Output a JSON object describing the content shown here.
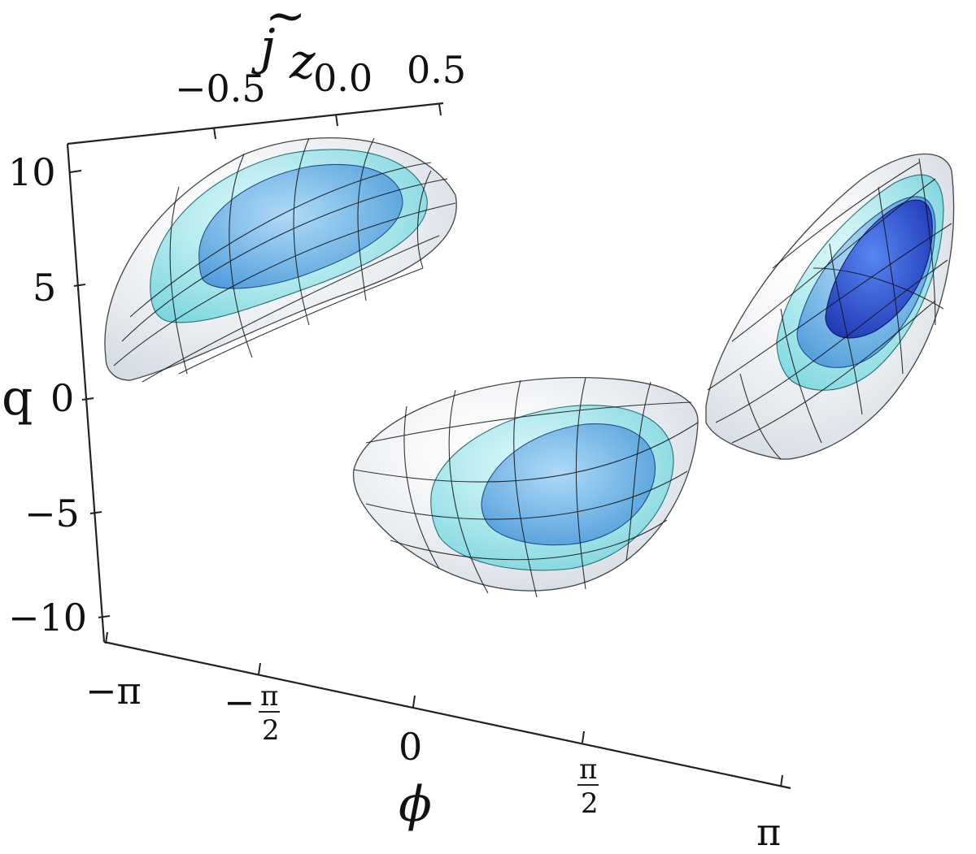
{
  "chart_data": {
    "type": "3d-contour-surfaces",
    "axes": {
      "x": {
        "label": "ϕ",
        "range": [
          "-π",
          "π"
        ],
        "ticks": [
          {
            "text": "−π"
          },
          {
            "num": "π",
            "den": "2",
            "sign": "−"
          },
          {
            "text": "0"
          },
          {
            "num": "π",
            "den": "2",
            "sign": ""
          },
          {
            "text": "π"
          }
        ]
      },
      "y": {
        "label_base": "j",
        "label_sub": "z",
        "range": [
          -0.5,
          0.5
        ],
        "ticks": [
          "−0.5",
          "0.0",
          "0.5"
        ]
      },
      "z": {
        "label": "q",
        "range": [
          -10,
          10
        ],
        "ticks": [
          "10",
          "5",
          "0",
          "−5",
          "−10"
        ]
      }
    },
    "surface_colors": {
      "outer": "#e6ecf2",
      "middle": "#8fe3ea",
      "inner": "#5aa5e6",
      "core": "#2a4fd8"
    },
    "blobs": [
      {
        "name": "left",
        "levels": 3
      },
      {
        "name": "center",
        "levels": 3
      },
      {
        "name": "right",
        "levels": 4
      }
    ]
  }
}
